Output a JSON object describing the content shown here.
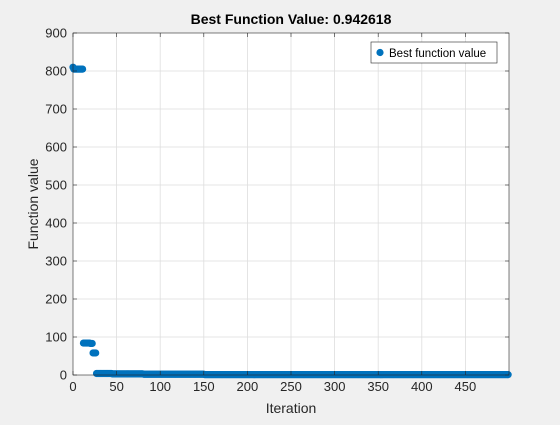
{
  "colors": {
    "figure_bg": "#f0f0f0",
    "axes_bg": "#ffffff",
    "axis_line": "#262626",
    "grid": "#dedede",
    "marker": "#0072bd"
  },
  "chart_data": {
    "type": "scatter",
    "title": "Best Function Value: 0.942618",
    "xlabel": "Iteration",
    "ylabel": "Function value",
    "xlim": [
      0,
      500
    ],
    "ylim": [
      0,
      900
    ],
    "xticks": [
      0,
      50,
      100,
      150,
      200,
      250,
      300,
      350,
      400,
      450
    ],
    "yticks": [
      0,
      100,
      200,
      300,
      400,
      500,
      600,
      700,
      800,
      900
    ],
    "grid": true,
    "legend_position": "top-right",
    "series": [
      {
        "name": "Best function value",
        "color": "#0072bd",
        "segments": [
          {
            "x_start": 0,
            "x_end": 0,
            "y": 810
          },
          {
            "x_start": 1,
            "x_end": 11,
            "y": 805
          },
          {
            "x_start": 12,
            "x_end": 19,
            "y": 84
          },
          {
            "x_start": 20,
            "x_end": 22,
            "y": 83
          },
          {
            "x_start": 23,
            "x_end": 26,
            "y": 58
          },
          {
            "x_start": 27,
            "x_end": 44,
            "y": 4
          },
          {
            "x_start": 45,
            "x_end": 80,
            "y": 3
          },
          {
            "x_start": 81,
            "x_end": 150,
            "y": 2
          },
          {
            "x_start": 151,
            "x_end": 499,
            "y": 0.942618
          }
        ]
      }
    ]
  }
}
